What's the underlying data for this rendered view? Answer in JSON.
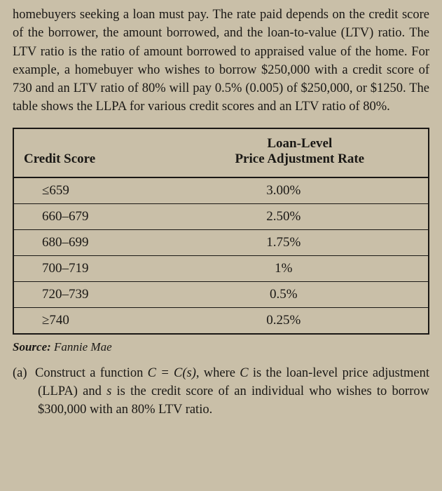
{
  "intro": "homebuyers seeking a loan must pay. The rate paid depends on the credit score of the borrower, the amount borrowed, and the loan-to-value (LTV) ratio. The LTV ratio is the ratio of amount borrowed to appraised value of the home. For example, a homebuyer who wishes to borrow $250,000 with a credit score of 730 and an LTV ratio of 80% will pay 0.5% (0.005) of $250,000, or $1250. The table shows the LLPA for various credit scores and an LTV ratio of 80%.",
  "table": {
    "header1": "Credit Score",
    "header2_line1": "Loan-Level",
    "header2_line2": "Price Adjustment Rate",
    "rows": [
      {
        "score": "≤659",
        "rate": "3.00%"
      },
      {
        "score": "660–679",
        "rate": "2.50%"
      },
      {
        "score": "680–699",
        "rate": "1.75%"
      },
      {
        "score": "700–719",
        "rate": "1%"
      },
      {
        "score": "720–739",
        "rate": "0.5%"
      },
      {
        "score": "≥740",
        "rate": "0.25%"
      }
    ]
  },
  "source": {
    "label": "Source:",
    "value": " Fannie Mae"
  },
  "question": {
    "label": "(a)",
    "pre": "Construct a function ",
    "equation": "C = C(s)",
    "mid": ", where ",
    "var1": "C",
    "mid2": " is the loan-level price adjustment (LLPA) and ",
    "var2": "s",
    "post": " is the credit score of an individual who wishes to borrow $300,000 with an 80% LTV ratio."
  }
}
